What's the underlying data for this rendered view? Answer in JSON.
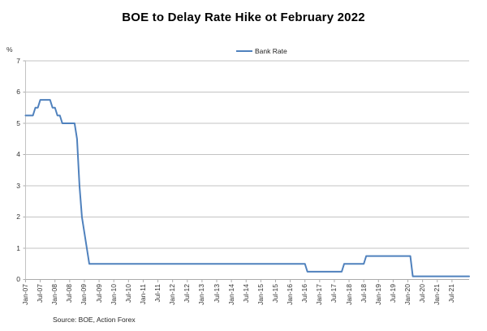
{
  "chart_data": {
    "type": "line",
    "title": "BOE to Delay Rate Hike ot February 2022",
    "ylabel": "%",
    "xlabel": "",
    "source": "Source: BOE, Action Forex",
    "legend": [
      "Bank Rate"
    ],
    "legend_position": "top-center",
    "grid": true,
    "ylim": [
      0,
      7
    ],
    "y_ticks": [
      0,
      1,
      2,
      3,
      4,
      5,
      6,
      7
    ],
    "x_tick_labels": [
      "Jan-07",
      "Jul-07",
      "Jan-08",
      "Jul-08",
      "Jan-09",
      "Jul-09",
      "Jan-10",
      "Jul-10",
      "Jan-11",
      "Jul-11",
      "Jan-12",
      "Jul-12",
      "Jan-13",
      "Jul-13",
      "Jan-14",
      "Jul-14",
      "Jan-15",
      "Jul-15",
      "Jan-16",
      "Jul-16",
      "Jan-17",
      "Jul-17",
      "Jan-18",
      "Jul-18",
      "Jan-19",
      "Jul-19",
      "Jan-20",
      "Jul-20",
      "Jan-21",
      "Jul-21"
    ],
    "x_tick_interval_months": 6,
    "x_range": {
      "start": "2007-01",
      "end": "2022-02"
    },
    "series": [
      {
        "name": "Bank Rate",
        "color": "#4f81bd",
        "unit": "%",
        "frequency": "monthly",
        "rate_changes": [
          {
            "date": "2007-01",
            "value": 5.25
          },
          {
            "date": "2007-05",
            "value": 5.5
          },
          {
            "date": "2007-07",
            "value": 5.75
          },
          {
            "date": "2007-12",
            "value": 5.5
          },
          {
            "date": "2008-02",
            "value": 5.25
          },
          {
            "date": "2008-04",
            "value": 5.0
          },
          {
            "date": "2008-10",
            "value": 4.5
          },
          {
            "date": "2008-11",
            "value": 3.0
          },
          {
            "date": "2008-12",
            "value": 2.0
          },
          {
            "date": "2009-01",
            "value": 1.5
          },
          {
            "date": "2009-02",
            "value": 1.0
          },
          {
            "date": "2009-03",
            "value": 0.5
          },
          {
            "date": "2016-08",
            "value": 0.25
          },
          {
            "date": "2017-11",
            "value": 0.5
          },
          {
            "date": "2018-08",
            "value": 0.75
          },
          {
            "date": "2020-03",
            "value": 0.1
          }
        ]
      }
    ],
    "colors": {
      "line": "#4f81bd",
      "grid": "#c3c3c3",
      "axis": "#ababab",
      "tick_text": "#333333",
      "title_text": "#000000",
      "background": "#ffffff"
    }
  }
}
